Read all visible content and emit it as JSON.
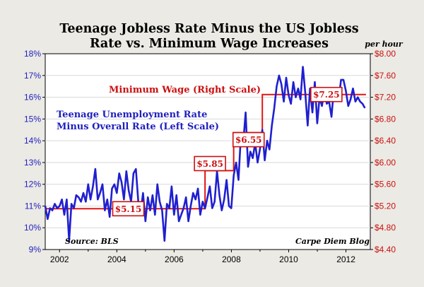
{
  "chart_data": {
    "type": "line",
    "title_lines": [
      "Teenage Jobless Rate Minus the US Jobless",
      "Rate vs. Minimum Wage Increases"
    ],
    "right_axis_unit": "per hour",
    "x_ticks": [
      2002,
      2004,
      2006,
      2008,
      2010,
      2012
    ],
    "xlim": [
      2001.5,
      2012.85
    ],
    "left_axis": {
      "ylim": [
        9,
        18
      ],
      "ticks": [
        "9%",
        "10%",
        "11%",
        "12%",
        "13%",
        "14%",
        "15%",
        "16%",
        "17%",
        "18%"
      ]
    },
    "right_axis": {
      "ylim": [
        4.4,
        8.0
      ],
      "ticks": [
        "$4.40",
        "$4.80",
        "$5.20",
        "$5.60",
        "$6.00",
        "$6.40",
        "$6.80",
        "$7.20",
        "$7.60",
        "$8.00"
      ]
    },
    "annotations": {
      "minimum_wage_label": "Minimum Wage (Right Scale)",
      "teen_label_lines": [
        "Teenage Unemployment Rate",
        "Minus Overall Rate (Left Scale)"
      ],
      "source": "Source: BLS",
      "credit": "Carpe Diem Blog"
    },
    "wage_boxes": [
      {
        "label": "$5.15",
        "x": 2004.4,
        "y": 5.15
      },
      {
        "label": "$5.85",
        "x": 2007.4,
        "y": 5.85
      },
      {
        "label": "$6.55",
        "x": 2008.6,
        "y": 6.55
      },
      {
        "label": "$7.25",
        "x": 2012.6,
        "y": 7.25
      }
    ],
    "series": [
      {
        "axis": "right",
        "color": "#e01515",
        "steps": [
          {
            "x": 2001.5,
            "y": 5.15
          },
          {
            "x": 2007.08,
            "y": 5.85
          },
          {
            "x": 2008.08,
            "y": 6.55
          },
          {
            "x": 2009.08,
            "y": 7.25
          },
          {
            "x": 2012.7,
            "y": 7.25
          }
        ]
      },
      {
        "axis": "left",
        "color": "#1f1fd0",
        "x_start": 2001.5,
        "x_step": 0.0833,
        "values": [
          11.0,
          10.4,
          10.9,
          10.8,
          11.1,
          10.9,
          11.0,
          11.3,
          10.6,
          11.3,
          9.4,
          11.1,
          10.9,
          11.5,
          11.4,
          11.2,
          11.6,
          11.2,
          12.0,
          11.3,
          11.9,
          12.7,
          11.3,
          11.6,
          12.0,
          10.8,
          11.3,
          10.5,
          11.8,
          12.0,
          11.6,
          12.5,
          12.1,
          11.3,
          12.6,
          11.7,
          11.2,
          12.5,
          12.7,
          11.2,
          10.7,
          11.6,
          10.3,
          11.4,
          10.8,
          11.5,
          10.6,
          12.0,
          11.2,
          10.8,
          9.4,
          11.1,
          10.9,
          11.9,
          10.6,
          11.5,
          10.3,
          10.6,
          10.9,
          11.4,
          10.3,
          11.0,
          11.6,
          11.3,
          11.8,
          10.6,
          11.2,
          10.9,
          11.4,
          11.9,
          10.9,
          11.2,
          12.6,
          11.5,
          10.8,
          11.3,
          12.2,
          11.0,
          10.9,
          12.4,
          13.0,
          12.2,
          14.2,
          13.9,
          15.3,
          12.8,
          13.5,
          13.2,
          13.9,
          13.0,
          13.6,
          14.5,
          13.1,
          14.0,
          13.6,
          14.7,
          15.5,
          16.5,
          17.0,
          16.6,
          15.8,
          16.9,
          16.1,
          15.7,
          16.7,
          16.0,
          16.4,
          15.9,
          17.4,
          16.2,
          14.7,
          16.4,
          15.3,
          16.7,
          14.8,
          16.0,
          15.6,
          16.3,
          15.7,
          15.8,
          15.1,
          16.4,
          16.0,
          15.9,
          16.8,
          16.8,
          16.3,
          15.6,
          15.9,
          16.4,
          15.8,
          16.0,
          15.8,
          15.7,
          15.5
        ]
      }
    ]
  }
}
